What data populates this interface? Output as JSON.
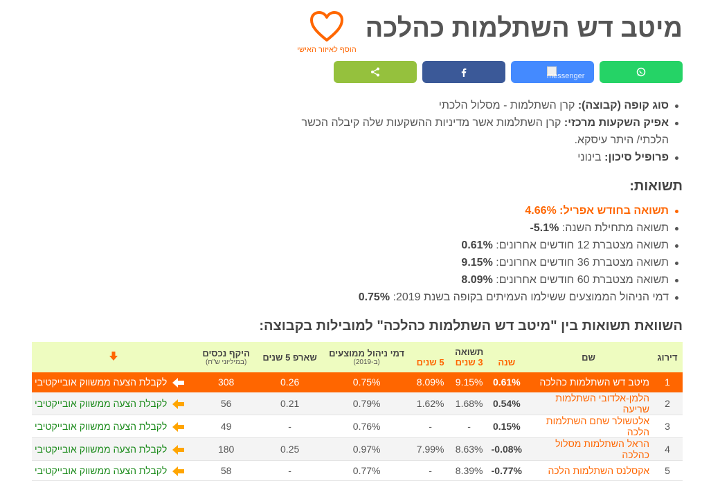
{
  "page": {
    "title": "מיטב דש השתלמות כהלכה",
    "favorite_label": "הוסף לאיזור האישי",
    "messenger_alt": "messenger"
  },
  "details": [
    {
      "label": "סוג קופה (קבוצה):",
      "value": "קרן השתלמות - מסלול הלכתי"
    },
    {
      "label": "אפיק השקעות מרכזי:",
      "value": "קרן השתלמות אשר מדיניות ההשקעות שלה קיבלה הכשר הלכתי/ היתר עיסקא."
    },
    {
      "label": "פרופיל סיכון:",
      "value": "בינוני"
    }
  ],
  "returns": {
    "heading": "תשואות:",
    "monthly_label": "תשואה בחודש אפריל:",
    "monthly_value": "4.66%",
    "ytd_label": "תשואה מתחילת השנה:",
    "ytd_value": "-5.1%",
    "m12_label": "תשואה מצטברת 12 חודשים אחרונים:",
    "m12_value": "0.61%",
    "m36_label": "תשואה מצטברת 36 חודשים אחרונים:",
    "m36_value": "9.15%",
    "m60_label": "תשואה מצטברת 60 חודשים אחרונים:",
    "m60_value": "8.09%",
    "fee_label": "דמי הניהול הממוצעים ששילמו העמיתים בקופה בשנת 2019:",
    "fee_value": "0.75%"
  },
  "comparison": {
    "heading": "השוואת תשואות בין \"מיטב דש השתלמות כהלכה\" למובילות בקבוצה:",
    "headers": {
      "rank": "דירוג",
      "name": "שם",
      "returns": "תשואה",
      "year": "שנה",
      "y3": "3 שנים",
      "y5": "5 שנים",
      "fees": "דמי ניהול ממוצעים",
      "fees_sub": "(ב-2019)",
      "sharpe": "שארפ 5 שנים",
      "assets": "היקף נכסים",
      "assets_sub": "(במיליוני ש\"ח)"
    },
    "link_text": "לקבלת הצעה ממשווק אובייקטיבי",
    "rows": [
      {
        "rank": "1",
        "name": "מיטב דש השתלמות כהלכה",
        "year": "0.61%",
        "y3": "9.15%",
        "y5": "8.09%",
        "fees": "0.75%",
        "sharpe": "0.26",
        "assets": "308"
      },
      {
        "rank": "2",
        "name": "הלמן-אלדובי השתלמות שריעה",
        "year": "0.54%",
        "y3": "1.68%",
        "y5": "1.62%",
        "fees": "0.79%",
        "sharpe": "0.21",
        "assets": "56"
      },
      {
        "rank": "3",
        "name": "אלטשולר שחם השתלמות הלכה",
        "year": "0.15%",
        "y3": "-",
        "y5": "-",
        "fees": "0.76%",
        "sharpe": "-",
        "assets": "49"
      },
      {
        "rank": "4",
        "name": "הראל השתלמות מסלול כהלכה",
        "year": "-0.08%",
        "y3": "8.63%",
        "y5": "7.99%",
        "fees": "0.97%",
        "sharpe": "0.25",
        "assets": "180"
      },
      {
        "rank": "5",
        "name": "אקסלנס השתלמות הלכה",
        "year": "-0.77%",
        "y3": "8.39%",
        "y5": "-",
        "fees": "0.77%",
        "sharpe": "-",
        "assets": "58"
      }
    ]
  },
  "colors": {
    "accent": "#ff6600",
    "whatsapp": "#25d366",
    "messenger": "#448aff",
    "facebook": "#3b5998",
    "share": "#95c13d",
    "header_bg": "#eefcc0",
    "link": "#1a8a1a"
  },
  "icons": [
    "heart-icon",
    "whatsapp-icon",
    "messenger-icon",
    "facebook-icon",
    "share-icon",
    "sort-arrow-icon",
    "left-arrow-icon"
  ]
}
